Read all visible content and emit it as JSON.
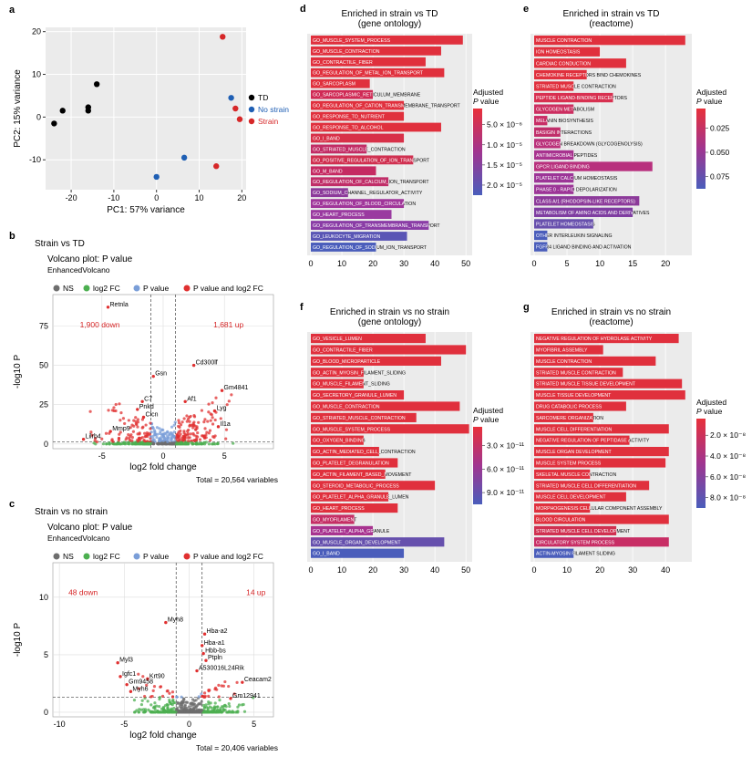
{
  "chart_data": [
    {
      "panel": "a",
      "type": "scatter",
      "title": "",
      "xlabel": "PC1: 57% variance",
      "ylabel": "PC2: 15% variance",
      "xlim": [
        -26,
        21
      ],
      "ylim": [
        -17,
        21
      ],
      "xticks": [
        -20,
        -10,
        0,
        10,
        20
      ],
      "yticks": [
        -10,
        0,
        10,
        20
      ],
      "legend": [
        {
          "name": "TD",
          "color": "#000000"
        },
        {
          "name": "No strain",
          "color": "#1f5fb4"
        },
        {
          "name": "Strain",
          "color": "#d62728"
        }
      ],
      "points": [
        {
          "x": -24,
          "y": -1.5,
          "group": "TD"
        },
        {
          "x": -22,
          "y": 1.5,
          "group": "TD"
        },
        {
          "x": -16,
          "y": 1.5,
          "group": "TD"
        },
        {
          "x": -16,
          "y": 2.3,
          "group": "TD"
        },
        {
          "x": -14,
          "y": 7.7,
          "group": "TD"
        },
        {
          "x": 0,
          "y": -14,
          "group": "No strain"
        },
        {
          "x": 6.5,
          "y": -9.5,
          "group": "No strain"
        },
        {
          "x": 17.5,
          "y": 4.5,
          "group": "No strain"
        },
        {
          "x": 14,
          "y": -11.5,
          "group": "Strain"
        },
        {
          "x": 15.5,
          "y": 18.8,
          "group": "Strain"
        },
        {
          "x": 18.5,
          "y": 2,
          "group": "Strain"
        },
        {
          "x": 19.5,
          "y": -0.5,
          "group": "Strain"
        }
      ]
    },
    {
      "panel": "b",
      "type": "scatter",
      "header": "Strain vs TD",
      "title": "Volcano plot: P value",
      "subtitle": "EnhancedVolcano",
      "legend": [
        "NS",
        "log2 FC",
        "P value",
        "P value and log2 FC"
      ],
      "legend_colors": [
        "#6e6e6e",
        "#4caf50",
        "#7a9ed8",
        "#e03030"
      ],
      "xlabel": "log2 fold change",
      "ylabel": "-log10 P",
      "xlim": [
        -9,
        9
      ],
      "ylim": [
        -3,
        95
      ],
      "xticks": [
        -5,
        0,
        5
      ],
      "yticks": [
        0,
        25,
        50,
        75
      ],
      "annotations": {
        "down": "1,900 down",
        "up": "1,681 up"
      },
      "total": "Total = 20,564 variables",
      "labeled_genes": [
        {
          "name": "Retnla",
          "x": -4.5,
          "y": 87
        },
        {
          "name": "Cd300lf",
          "x": 2.5,
          "y": 50
        },
        {
          "name": "Gsn",
          "x": -0.8,
          "y": 43
        },
        {
          "name": "Gm4841",
          "x": 4.8,
          "y": 34
        },
        {
          "name": "Af1",
          "x": 1.8,
          "y": 27
        },
        {
          "name": "C7",
          "x": -1.7,
          "y": 27
        },
        {
          "name": "Pnkd",
          "x": -2.1,
          "y": 22
        },
        {
          "name": "Lyg",
          "x": 4.2,
          "y": 21
        },
        {
          "name": "Il1a",
          "x": 4.5,
          "y": 11
        },
        {
          "name": "Mmp9",
          "x": -4.3,
          "y": 8
        },
        {
          "name": "Lilrb4",
          "x": -6.5,
          "y": 3
        },
        {
          "name": "Clcn",
          "x": -1.6,
          "y": 17
        }
      ]
    },
    {
      "panel": "c",
      "type": "scatter",
      "header": "Strain vs no strain",
      "title": "Volcano plot: P value",
      "subtitle": "EnhancedVolcano",
      "legend": [
        "NS",
        "log2 FC",
        "P value",
        "P value and log2 FC"
      ],
      "legend_colors": [
        "#6e6e6e",
        "#4caf50",
        "#7a9ed8",
        "#e03030"
      ],
      "xlabel": "log2 fold change",
      "ylabel": "-log10 P",
      "xlim": [
        -10.5,
        6.5
      ],
      "ylim": [
        -0.4,
        13
      ],
      "xticks": [
        -10,
        -5,
        0,
        5
      ],
      "yticks": [
        0,
        5,
        10
      ],
      "annotations": {
        "down": "48 down",
        "up": "14 up"
      },
      "total": "Total = 20,406 variables",
      "labeled_genes": [
        {
          "name": "Myh8",
          "x": -1.8,
          "y": 7.8
        },
        {
          "name": "Hba-a2",
          "x": 1.2,
          "y": 6.8
        },
        {
          "name": "Hba-a1",
          "x": 1.0,
          "y": 5.8
        },
        {
          "name": "Hbb-bs",
          "x": 1.1,
          "y": 5.1
        },
        {
          "name": "Ptpln",
          "x": 1.3,
          "y": 4.5
        },
        {
          "name": "Myl3",
          "x": -5.5,
          "y": 4.3
        },
        {
          "name": "Igfc1",
          "x": -5.3,
          "y": 3.1
        },
        {
          "name": "Krt90",
          "x": -3.2,
          "y": 2.9
        },
        {
          "name": "Gm9458",
          "x": -4.8,
          "y": 2.4
        },
        {
          "name": "Myh6",
          "x": -4.5,
          "y": 1.8
        },
        {
          "name": "A530016L24Rik",
          "x": 0.6,
          "y": 3.6
        },
        {
          "name": "Ceacam2",
          "x": 4.1,
          "y": 2.6
        },
        {
          "name": "Gm12941",
          "x": 3.2,
          "y": 1.2
        }
      ]
    },
    {
      "panel": "d",
      "type": "bar",
      "orientation": "horizontal",
      "title": "Enriched in strain vs TD\n(gene ontology)",
      "legend_title": "Adjusted P value",
      "legend_ticks": [
        "5.0 × 10⁻⁶",
        "1.0 × 10⁻⁵",
        "1.5 × 10⁻⁵",
        "2.0 × 10⁻⁵"
      ],
      "xlim": [
        0,
        52
      ],
      "xticks": [
        0,
        10,
        20,
        30,
        40,
        50
      ],
      "categories": [
        "GO_MUSCLE_SYSTEM_PROCESS",
        "GO_MUSCLE_CONTRACTION",
        "GO_CONTRACTILE_FIBER",
        "GO_REGULATION_OF_METAL_ION_TRANSPORT",
        "GO_SARCOPLASM",
        "GO_SARCOPLASMIC_RETICULUM_MEMBRANE",
        "GO_REGULATION_OF_CATION_TRANSMEMBRANE_TRANSPORT",
        "GO_RESPONSE_TO_NUTRIENT",
        "GO_RESPONSE_TO_ALCOHOL",
        "GO_I_BAND",
        "GO_STRIATED_MUSCLE_CONTRACTION",
        "GO_POSITIVE_REGULATION_OF_ION_TRANSPORT",
        "GO_M_BAND",
        "GO_REGULATION_OF_CALCIUM_ION_TRANSPORT",
        "GO_SODIUM_CHANNEL_REGULATOR_ACTIVITY",
        "GO_REGULATION_OF_BLOOD_CIRCULATION",
        "GO_HEART_PROCESS",
        "GO_REGULATION_OF_TRANSMEMBRANE_TRANSPORT",
        "GO_LEUKOCYTE_MIGRATION",
        "GO_REGULATION_OF_SODIUM_ION_TRANSPORT"
      ],
      "values": [
        49,
        42,
        37,
        43,
        19,
        20,
        30,
        30,
        42,
        30,
        18,
        33,
        21,
        25,
        12,
        30,
        26,
        38,
        31,
        21
      ],
      "colors": [
        "#e0303d",
        "#e0303d",
        "#e0303d",
        "#e0303d",
        "#e0303d",
        "#d02a55",
        "#e0303d",
        "#e0303d",
        "#e0303d",
        "#d83048",
        "#c22c65",
        "#d03050",
        "#c52a62",
        "#c02e68",
        "#8c3a9a",
        "#a0369a",
        "#9a3aa0",
        "#8a3ca6",
        "#5a55b5",
        "#4a5dbb"
      ]
    },
    {
      "panel": "e",
      "type": "bar",
      "orientation": "horizontal",
      "title": "Enriched in strain vs TD\n(reactome)",
      "legend_title": "Adjusted P value",
      "legend_ticks": [
        "0.025",
        "0.050",
        "0.075"
      ],
      "xlim": [
        0,
        24
      ],
      "xticks": [
        0,
        5,
        10,
        15,
        20
      ],
      "categories": [
        "MUSCLE CONTRACTION",
        "ION HOMEOSTASIS",
        "CARDIAC CONDUCTION",
        "CHEMOKINE RECEPTORS BIND CHEMOKINES",
        "STRIATED MUSCLE CONTRACTION",
        "PEPTIDE LIGAND-BINDING RECEPTORS",
        "GLYCOGEN METABOLISM",
        "MELANIN BIOSYNTHESIS",
        "BASIGIN INTERACTIONS",
        "GLYCOGEN BREAKDOWN (GLYCOGENOLYSIS)",
        "ANTIMICROBIAL PEPTIDES",
        "GPCR LIGAND BINDING",
        "PLATELET CALCIUM HOMEOSTASIS",
        "PHASE 0 - RAPID DEPOLARIZATION",
        "CLASS A/1 (RHODOPSIN-LIKE RECEPTORS)",
        "METABOLISM OF AMINO ACIDS AND DERIVATIVES",
        "PLATELET HOMEOSTASIS",
        "OTHER INTERLEUKIN SIGNALING",
        "FGFR4 LIGAND BINDING AND ACTIVATION"
      ],
      "values": [
        23,
        10,
        14,
        8,
        6,
        12,
        6,
        2,
        4,
        4,
        6,
        18,
        6,
        6,
        16,
        15,
        9,
        2,
        2
      ],
      "colors": [
        "#e0303d",
        "#e0303d",
        "#e0303d",
        "#e0303d",
        "#e0303d",
        "#d83050",
        "#cc2e60",
        "#c82e66",
        "#c02e6a",
        "#ba307a",
        "#a8338f",
        "#b8307d",
        "#9c3597",
        "#9c3597",
        "#8c3a9a",
        "#7f3da1",
        "#6850ad",
        "#4a5dbb",
        "#4a5dbb"
      ]
    },
    {
      "panel": "f",
      "type": "bar",
      "orientation": "horizontal",
      "title": "Enriched in strain vs no strain\n(gene ontology)",
      "legend_title": "Adjusted P value",
      "legend_ticks": [
        "3.0 × 10⁻¹¹",
        "6.0 × 10⁻¹¹",
        "9.0 × 10⁻¹¹"
      ],
      "xlim": [
        0,
        52
      ],
      "xticks": [
        0,
        10,
        20,
        30,
        40,
        50
      ],
      "categories": [
        "GO_VESICLE_LUMEN",
        "GO_CONTRACTILE_FIBER",
        "GO_BLOOD_MICROPARTICLE",
        "GO_ACTIN_MYOSIN_FILAMENT_SLIDING",
        "GO_MUSCLE_FILAMENT_SLIDING",
        "GO_SECRETORY_GRANULE_LUMEN",
        "GO_MUSCLE_CONTRACTION",
        "GO_STRIATED_MUSCLE_CONTRACTION",
        "GO_MUSCLE_SYSTEM_PROCESS",
        "GO_OXYGEN_BINDING",
        "GO_ACTIN_MEDIATED_CELL_CONTRACTION",
        "GO_PLATELET_DEGRANULATION",
        "GO_ACTIN_FILAMENT_BASED_MOVEMENT",
        "GO_STEROID_METABOLIC_PROCESS",
        "GO_PLATELET_ALPHA_GRANULE_LUMEN",
        "GO_HEART_PROCESS",
        "GO_MYOFILAMENT",
        "GO_PLATELET_ALPHA_GRANULE",
        "GO_MUSCLE_ORGAN_DEVELOPMENT",
        "GO_I_BAND"
      ],
      "values": [
        37,
        50,
        42,
        17,
        17,
        30,
        48,
        34,
        51,
        17,
        22,
        28,
        24,
        40,
        25,
        28,
        14,
        20,
        43,
        30
      ],
      "colors": [
        "#e0303d",
        "#e0303d",
        "#e0303d",
        "#e0303d",
        "#e0303d",
        "#e0303d",
        "#e0303d",
        "#e0303d",
        "#e0303d",
        "#e0303d",
        "#e0303d",
        "#e0303d",
        "#e0303d",
        "#e0303d",
        "#e0303d",
        "#e0303d",
        "#c52e65",
        "#a8338f",
        "#6650ad",
        "#4a5dbb"
      ]
    },
    {
      "panel": "g",
      "type": "bar",
      "orientation": "horizontal",
      "title": "Enriched in strain vs no strain\n(reactome)",
      "legend_title": "Adjusted P value",
      "legend_ticks": [
        "2.0 × 10⁻⁸",
        "4.0 × 10⁻⁸",
        "6.0 × 10⁻⁸",
        "8.0 × 10⁻⁸"
      ],
      "xlim": [
        0,
        48
      ],
      "xticks": [
        0,
        10,
        20,
        30,
        40
      ],
      "categories": [
        "NEGATIVE REGULATION OF HYDROLASE ACTIVITY",
        "MYOFIBRIL ASSEMBLY",
        "MUSCLE CONTRACTION",
        "STRIATED MUSCLE CONTRACTION",
        "STRIATED MUSCLE TISSUE DEVELOPMENT",
        "MUSCLE TISSUE DEVELOPMENT",
        "DRUG CATABOLIC PROCESS",
        "SARCOMERE ORGANIZATION",
        "MUSCLE CELL DIFFERENTIATION",
        "NEGATIVE REGULATION OF PEPTIDASE ACTIVITY",
        "MUSCLE ORGAN DEVELOPMENT",
        "MUSCLE SYSTEM PROCESS",
        "SKELETAL MUSCLE CONTRACTION",
        "STRIATED MUSCLE CELL DIFFERENTIATION",
        "MUSCLE CELL DEVELOPMENT",
        "MORPHOGENESIS CELLULAR COMPONENT ASSEMBLY",
        "BLOOD CIRCULATION",
        "STRIATED MUSCLE CELL DEVELOPMENT",
        "CIRCULATORY SYSTEM PROCESS",
        "ACTIN-MYOSIN FILAMENT SLIDING"
      ],
      "values": [
        44,
        21,
        37,
        27,
        45,
        46,
        28,
        18,
        41,
        29,
        41,
        40,
        17,
        35,
        28,
        17,
        41,
        25,
        41,
        12
      ],
      "colors": [
        "#e0303d",
        "#e0303d",
        "#e0303d",
        "#e0303d",
        "#e0303d",
        "#e0303d",
        "#e0303d",
        "#e0303d",
        "#e0303d",
        "#e0303d",
        "#e0303d",
        "#e0303d",
        "#e0303d",
        "#e0303d",
        "#e0303d",
        "#e0303d",
        "#e0303d",
        "#d03050",
        "#c82e65",
        "#4a5dbb"
      ]
    }
  ],
  "panel_letters": [
    "a",
    "b",
    "c",
    "d",
    "e",
    "f",
    "g"
  ]
}
